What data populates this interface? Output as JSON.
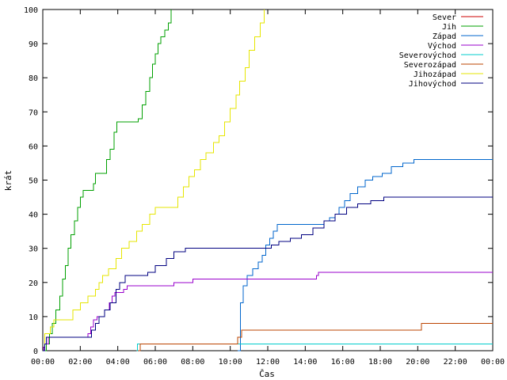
{
  "chart_data": {
    "type": "line",
    "title": "",
    "xlabel": "Čas",
    "ylabel": "krát",
    "xlim": [
      0,
      24
    ],
    "ylim": [
      0,
      100
    ],
    "x_tick_labels": [
      "00:00",
      "02:00",
      "04:00",
      "06:00",
      "08:00",
      "10:00",
      "12:00",
      "14:00",
      "16:00",
      "18:00",
      "20:00",
      "22:00",
      "00:00"
    ],
    "y_tick_labels": [
      "0",
      "10",
      "20",
      "30",
      "40",
      "50",
      "60",
      "70",
      "80",
      "90",
      "100"
    ],
    "grid": false,
    "legend_position": "top-right",
    "series": [
      {
        "name": "Sever",
        "color": "#cc0000",
        "points": []
      },
      {
        "name": "Jih",
        "color": "#00a000",
        "points": [
          [
            0,
            0
          ],
          [
            0.2,
            2
          ],
          [
            0.35,
            5
          ],
          [
            0.5,
            8
          ],
          [
            0.7,
            12
          ],
          [
            0.9,
            16
          ],
          [
            1.05,
            21
          ],
          [
            1.2,
            25
          ],
          [
            1.35,
            30
          ],
          [
            1.5,
            34
          ],
          [
            1.7,
            38
          ],
          [
            1.85,
            42
          ],
          [
            2.0,
            45
          ],
          [
            2.15,
            47
          ],
          [
            2.6,
            47
          ],
          [
            2.7,
            49
          ],
          [
            2.8,
            52
          ],
          [
            3.3,
            52
          ],
          [
            3.4,
            56
          ],
          [
            3.6,
            59
          ],
          [
            3.8,
            64
          ],
          [
            3.95,
            67
          ],
          [
            5.0,
            67
          ],
          [
            5.1,
            68
          ],
          [
            5.3,
            72
          ],
          [
            5.5,
            76
          ],
          [
            5.7,
            80
          ],
          [
            5.85,
            84
          ],
          [
            6.0,
            87
          ],
          [
            6.15,
            90
          ],
          [
            6.3,
            92
          ],
          [
            6.5,
            94
          ],
          [
            6.7,
            96
          ],
          [
            6.85,
            100
          ]
        ]
      },
      {
        "name": "Západ",
        "color": "#0066cc",
        "points": [
          [
            10.4,
            0
          ],
          [
            10.55,
            14
          ],
          [
            10.7,
            19
          ],
          [
            10.9,
            22
          ],
          [
            11.2,
            24
          ],
          [
            11.5,
            26
          ],
          [
            11.7,
            28
          ],
          [
            11.9,
            31
          ],
          [
            12.1,
            33
          ],
          [
            12.3,
            35
          ],
          [
            12.5,
            37
          ],
          [
            14.7,
            37
          ],
          [
            15.0,
            38
          ],
          [
            15.3,
            39
          ],
          [
            15.6,
            40
          ],
          [
            15.8,
            42
          ],
          [
            16.1,
            44
          ],
          [
            16.4,
            46
          ],
          [
            16.8,
            48
          ],
          [
            17.2,
            50
          ],
          [
            17.6,
            51
          ],
          [
            18.1,
            52
          ],
          [
            18.6,
            54
          ],
          [
            19.2,
            55
          ],
          [
            19.8,
            56
          ],
          [
            24,
            56
          ]
        ]
      },
      {
        "name": "Východ",
        "color": "#9900cc",
        "points": [
          [
            0,
            0
          ],
          [
            0.05,
            1
          ],
          [
            0.1,
            2
          ],
          [
            0.3,
            4
          ],
          [
            0.5,
            4
          ],
          [
            0.9,
            4
          ],
          [
            1.3,
            4
          ],
          [
            1.8,
            4
          ],
          [
            2.2,
            4
          ],
          [
            2.4,
            5
          ],
          [
            2.55,
            7
          ],
          [
            2.7,
            9
          ],
          [
            2.9,
            10
          ],
          [
            3.1,
            10
          ],
          [
            3.3,
            12
          ],
          [
            3.55,
            14
          ],
          [
            3.7,
            16
          ],
          [
            3.85,
            17
          ],
          [
            4.1,
            17
          ],
          [
            4.3,
            18
          ],
          [
            4.5,
            19
          ],
          [
            5.0,
            19
          ],
          [
            6.0,
            19
          ],
          [
            7.0,
            20
          ],
          [
            8.0,
            21
          ],
          [
            9.0,
            21
          ],
          [
            9.2,
            21
          ],
          [
            9.7,
            21
          ],
          [
            10.0,
            21
          ],
          [
            11.0,
            21
          ],
          [
            12.0,
            21
          ],
          [
            13.0,
            21
          ],
          [
            14.0,
            21
          ],
          [
            14.6,
            22
          ],
          [
            14.7,
            23
          ],
          [
            24,
            23
          ]
        ]
      },
      {
        "name": "Severovýchod",
        "color": "#00cccc",
        "points": [
          [
            5.0,
            0
          ],
          [
            5.05,
            2
          ],
          [
            10.5,
            2
          ],
          [
            12.0,
            2
          ],
          [
            16.0,
            2
          ],
          [
            20.0,
            2
          ],
          [
            24,
            2
          ]
        ]
      },
      {
        "name": "Severozápad",
        "color": "#bb4400",
        "points": [
          [
            5.1,
            0
          ],
          [
            5.2,
            2
          ],
          [
            7.6,
            2
          ],
          [
            8.8,
            2
          ],
          [
            8.9,
            2
          ],
          [
            10.35,
            2
          ],
          [
            10.4,
            4
          ],
          [
            10.6,
            6
          ],
          [
            20.1,
            6
          ],
          [
            20.2,
            8
          ],
          [
            24,
            8
          ]
        ]
      },
      {
        "name": "Jihozápad",
        "color": "#e6e600",
        "points": [
          [
            0,
            0
          ],
          [
            0.1,
            5
          ],
          [
            0.4,
            7
          ],
          [
            0.6,
            9
          ],
          [
            1.2,
            9
          ],
          [
            1.6,
            12
          ],
          [
            2.0,
            14
          ],
          [
            2.4,
            16
          ],
          [
            2.8,
            18
          ],
          [
            3.0,
            20
          ],
          [
            3.2,
            22
          ],
          [
            3.5,
            24
          ],
          [
            3.9,
            27
          ],
          [
            4.2,
            30
          ],
          [
            4.6,
            32
          ],
          [
            5.0,
            35
          ],
          [
            5.3,
            37
          ],
          [
            5.7,
            40
          ],
          [
            6.0,
            42
          ],
          [
            6.8,
            42
          ],
          [
            7.2,
            45
          ],
          [
            7.5,
            48
          ],
          [
            7.8,
            51
          ],
          [
            8.1,
            53
          ],
          [
            8.4,
            56
          ],
          [
            8.7,
            58
          ],
          [
            9.1,
            61
          ],
          [
            9.4,
            63
          ],
          [
            9.7,
            67
          ],
          [
            10.0,
            71
          ],
          [
            10.3,
            75
          ],
          [
            10.5,
            79
          ],
          [
            10.8,
            83
          ],
          [
            11.0,
            88
          ],
          [
            11.3,
            92
          ],
          [
            11.6,
            96
          ],
          [
            11.8,
            100
          ]
        ]
      },
      {
        "name": "Jihovýchod",
        "color": "#000080",
        "points": [
          [
            0,
            0
          ],
          [
            0.1,
            2
          ],
          [
            0.2,
            4
          ],
          [
            1.2,
            4
          ],
          [
            2.4,
            4
          ],
          [
            2.6,
            6
          ],
          [
            2.8,
            8
          ],
          [
            3.0,
            10
          ],
          [
            3.3,
            12
          ],
          [
            3.6,
            14
          ],
          [
            3.9,
            18
          ],
          [
            4.1,
            20
          ],
          [
            4.4,
            22
          ],
          [
            5.2,
            22
          ],
          [
            5.6,
            23
          ],
          [
            6.0,
            25
          ],
          [
            6.6,
            27
          ],
          [
            7.0,
            29
          ],
          [
            7.6,
            30
          ],
          [
            8.6,
            30
          ],
          [
            9.4,
            30
          ],
          [
            12.0,
            30
          ],
          [
            12.2,
            31
          ],
          [
            12.6,
            32
          ],
          [
            13.2,
            33
          ],
          [
            13.8,
            34
          ],
          [
            14.4,
            36
          ],
          [
            15.0,
            38
          ],
          [
            15.6,
            40
          ],
          [
            16.2,
            42
          ],
          [
            16.8,
            43
          ],
          [
            17.5,
            44
          ],
          [
            18.2,
            45
          ],
          [
            24,
            45
          ]
        ]
      }
    ]
  }
}
